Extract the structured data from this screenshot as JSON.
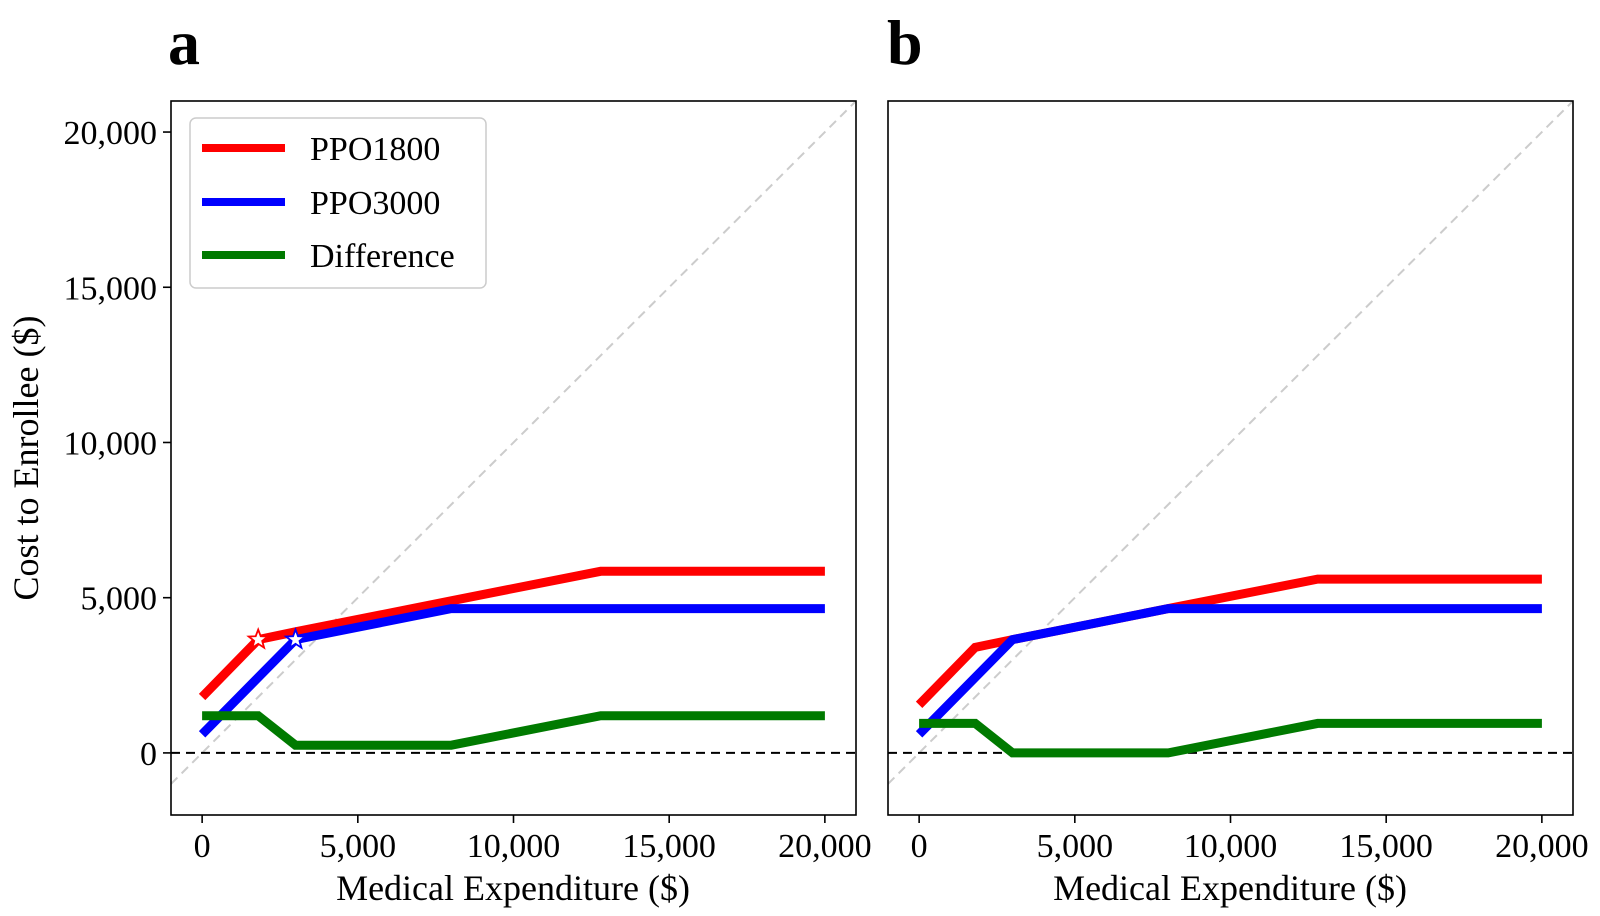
{
  "chart_data": [
    {
      "panel": "a",
      "type": "line",
      "xlabel": "Medical Expenditure ($)",
      "ylabel": "Cost to Enrollee ($)",
      "xlim": [
        -1000,
        21000
      ],
      "ylim": [
        -2000,
        21000
      ],
      "xticks": [
        0,
        5000,
        10000,
        15000,
        20000
      ],
      "xtick_labels": [
        "0",
        "5,000",
        "10,000",
        "15,000",
        "20,000"
      ],
      "yticks": [
        0,
        5000,
        10000,
        15000,
        20000
      ],
      "ytick_labels": [
        "0",
        "5,000",
        "10,000",
        "15,000",
        "20,000"
      ],
      "legend": {
        "position": "upper-left"
      },
      "series": [
        {
          "name": "PPO1800",
          "color": "#ff0000",
          "x": [
            0,
            1800,
            3000,
            8000,
            12800,
            20000
          ],
          "y": [
            1800,
            3650,
            3900,
            4900,
            5850,
            5850
          ]
        },
        {
          "name": "PPO3000",
          "color": "#0000ff",
          "x": [
            0,
            3000,
            8000,
            20000
          ],
          "y": [
            600,
            3650,
            4650,
            4650
          ]
        },
        {
          "name": "Difference",
          "color": "#007a00",
          "x": [
            0,
            1800,
            3000,
            8000,
            12800,
            20000
          ],
          "y": [
            1200,
            1200,
            250,
            250,
            1200,
            1200
          ]
        }
      ],
      "markers": [
        {
          "series": "PPO1800",
          "symbol": "star",
          "x": 1800,
          "y": 3650,
          "color": "#ff0000"
        },
        {
          "series": "PPO3000",
          "symbol": "star",
          "x": 3000,
          "y": 3650,
          "color": "#0000ff"
        }
      ],
      "reference_lines": [
        {
          "kind": "diagonal",
          "label": "y = x",
          "color": "#cccccc",
          "style": "dashed"
        },
        {
          "kind": "horizontal",
          "y": 0,
          "color": "#000000",
          "style": "dashed"
        }
      ]
    },
    {
      "panel": "b",
      "type": "line",
      "xlabel": "Medical Expenditure ($)",
      "ylabel": "",
      "xlim": [
        -1000,
        21000
      ],
      "ylim": [
        -2000,
        21000
      ],
      "xticks": [
        0,
        5000,
        10000,
        15000,
        20000
      ],
      "xtick_labels": [
        "0",
        "5,000",
        "10,000",
        "15,000",
        "20,000"
      ],
      "yticks": [],
      "ytick_labels": [],
      "series": [
        {
          "name": "PPO1800",
          "color": "#ff0000",
          "x": [
            0,
            1800,
            3000,
            8000,
            12800,
            20000
          ],
          "y": [
            1550,
            3400,
            3650,
            4650,
            5600,
            5600
          ]
        },
        {
          "name": "PPO3000",
          "color": "#0000ff",
          "x": [
            0,
            3000,
            8000,
            20000
          ],
          "y": [
            600,
            3650,
            4650,
            4650
          ]
        },
        {
          "name": "Difference",
          "color": "#007a00",
          "x": [
            0,
            1800,
            3000,
            8000,
            12800,
            20000
          ],
          "y": [
            950,
            950,
            0,
            0,
            950,
            950
          ]
        }
      ],
      "markers": [],
      "reference_lines": [
        {
          "kind": "diagonal",
          "label": "y = x",
          "color": "#cccccc",
          "style": "dashed"
        },
        {
          "kind": "horizontal",
          "y": 0,
          "color": "#000000",
          "style": "dashed"
        }
      ]
    }
  ]
}
